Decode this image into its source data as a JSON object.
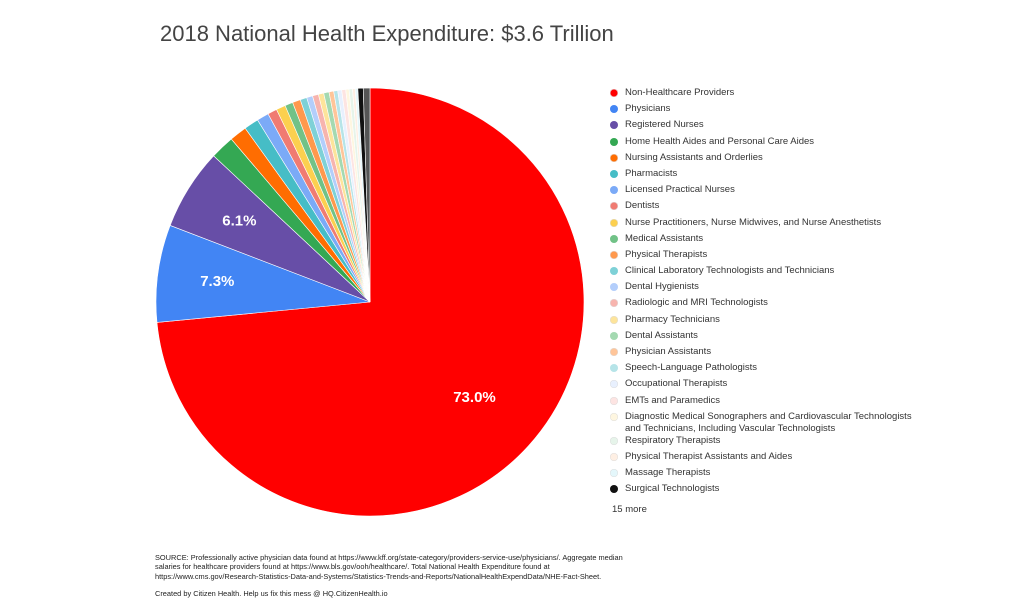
{
  "chart_data": {
    "type": "pie",
    "title": "2018 National Health Expenditure: $3.6 Trillion",
    "slices": [
      {
        "label": "Non-Healthcare Providers",
        "value": 73.0,
        "color": "#ff0000",
        "data_label": "73.0%"
      },
      {
        "label": "Physicians",
        "value": 7.3,
        "color": "#4285f4",
        "data_label": "7.3%"
      },
      {
        "label": "Registered Nurses",
        "value": 6.1,
        "color": "#674ea7",
        "data_label": "6.1%"
      },
      {
        "label": "Home Health Aides and Personal Care Aides",
        "value": 1.8,
        "color": "#34a853",
        "data_label": ""
      },
      {
        "label": "Nursing Assistants and Orderlies",
        "value": 1.3,
        "color": "#ff6d01",
        "data_label": ""
      },
      {
        "label": "Pharmacists",
        "value": 1.1,
        "color": "#46bdc6",
        "data_label": ""
      },
      {
        "label": "Licensed Practical Nurses",
        "value": 0.9,
        "color": "#7baaf7",
        "data_label": ""
      },
      {
        "label": "Dentists",
        "value": 0.7,
        "color": "#f07b72",
        "data_label": ""
      },
      {
        "label": "Nurse Practitioners, Nurse Midwives, and Nurse Anesthetists",
        "value": 0.7,
        "color": "#fcd04f",
        "data_label": ""
      },
      {
        "label": "Medical Assistants",
        "value": 0.6,
        "color": "#71c287",
        "data_label": ""
      },
      {
        "label": "Physical Therapists",
        "value": 0.6,
        "color": "#ff994d",
        "data_label": ""
      },
      {
        "label": "Clinical Laboratory Technologists and Technicians",
        "value": 0.5,
        "color": "#7ed1d7",
        "data_label": ""
      },
      {
        "label": "Dental Hygienists",
        "value": 0.45,
        "color": "#b3cefb",
        "data_label": ""
      },
      {
        "label": "Radiologic and MRI Technologists",
        "value": 0.45,
        "color": "#f7b4ae",
        "data_label": ""
      },
      {
        "label": "Pharmacy Technicians",
        "value": 0.4,
        "color": "#fde49b",
        "data_label": ""
      },
      {
        "label": "Dental Assistants",
        "value": 0.4,
        "color": "#a4d9b1",
        "data_label": ""
      },
      {
        "label": "Physician Assistants",
        "value": 0.35,
        "color": "#ffc599",
        "data_label": ""
      },
      {
        "label": "Speech-Language Pathologists",
        "value": 0.3,
        "color": "#b6e4e8",
        "data_label": ""
      },
      {
        "label": "Occupational Therapists",
        "value": 0.3,
        "color": "#e8f0fe",
        "data_label": ""
      },
      {
        "label": "EMTs and Paramedics",
        "value": 0.3,
        "color": "#fde4e2",
        "data_label": ""
      },
      {
        "label": "Diagnostic Medical Sonographers and Cardiovascular Technologists and Technicians, Including Vascular Technologists",
        "value": 0.25,
        "color": "#fef6e0",
        "data_label": ""
      },
      {
        "label": "Respiratory Therapists",
        "value": 0.25,
        "color": "#e6f4ea",
        "data_label": ""
      },
      {
        "label": "Physical Therapist Assistants and Aides",
        "value": 0.2,
        "color": "#feefe3",
        "data_label": ""
      },
      {
        "label": "Massage Therapists",
        "value": 0.2,
        "color": "#e4f7fb",
        "data_label": ""
      },
      {
        "label": "Surgical Technologists",
        "value": 0.4,
        "color": "#111111",
        "data_label": ""
      },
      {
        "label": "",
        "value": 0.5,
        "color": "#555555",
        "data_label": ""
      }
    ],
    "legend_position": "right"
  },
  "legend": {
    "more_label": "15 more"
  },
  "notes": {
    "source": "SOURCE: Professionally active physician data found at https://www.kff.org/state-category/providers-service-use/physicians/. Aggregate median salaries for healthcare providers found at https://www.bls.gov/ooh/healthcare/. Total National Health Expenditure found at https://www.cms.gov/Research-Statistics-Data-and-Systems/Statistics-Trends-and-Reports/NationalHealthExpendData/NHE-Fact-Sheet.",
    "credit": "Created by Citizen Health. Help us fix this mess @ HQ.CitizenHealth.io"
  }
}
